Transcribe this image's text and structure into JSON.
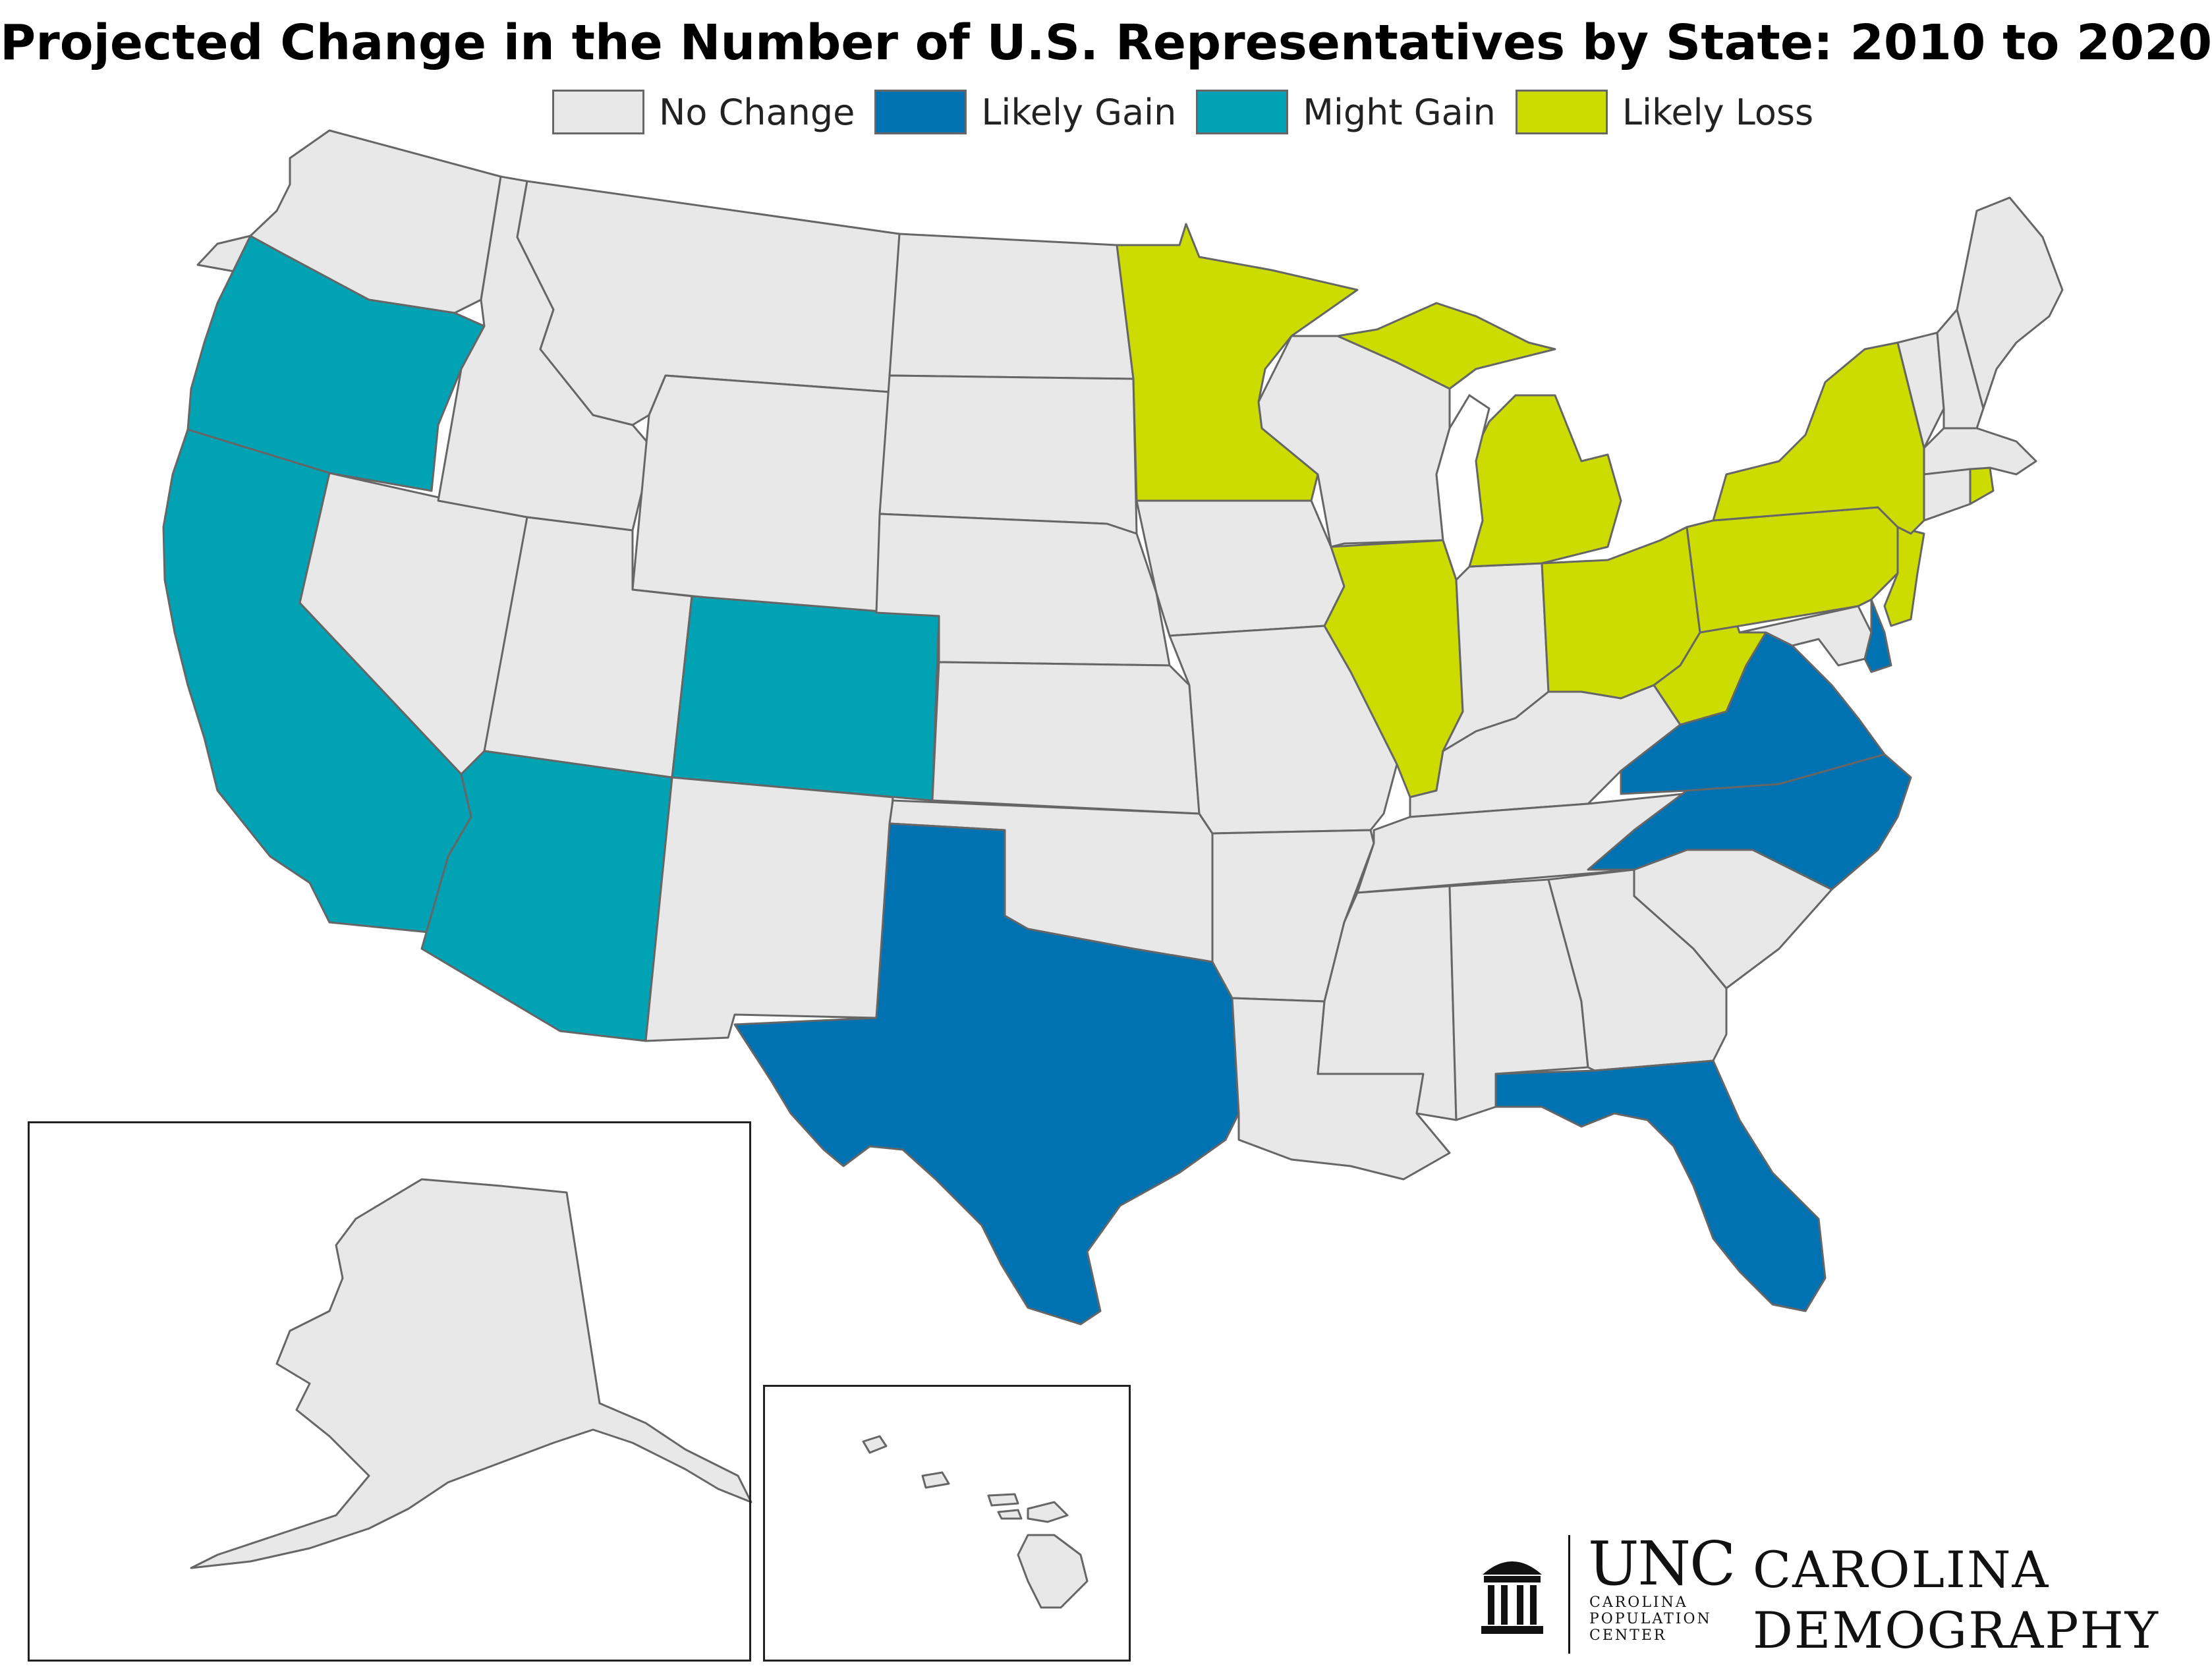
{
  "title": "Projected Change in the Number of U.S. Representatives by State: 2010 to 2020",
  "legend": [
    {
      "label": "No Change",
      "color": "#e8e8e8"
    },
    {
      "label": "Likely Gain",
      "color": "#0072b1"
    },
    {
      "label": "Might Gain",
      "color": "#00a2b4"
    },
    {
      "label": "Likely Loss",
      "color": "#ccdb00"
    }
  ],
  "categories": {
    "likely_gain": [
      "Texas",
      "Florida",
      "North Carolina",
      "Virginia",
      "Delaware"
    ],
    "might_gain": [
      "Oregon",
      "California",
      "Arizona",
      "Colorado"
    ],
    "likely_loss": [
      "Minnesota",
      "Michigan",
      "Illinois",
      "Ohio",
      "West Virginia",
      "Pennsylvania",
      "New York",
      "New Jersey",
      "Rhode Island"
    ],
    "no_change": [
      "Washington",
      "Idaho",
      "Montana",
      "Wyoming",
      "Nevada",
      "Utah",
      "New Mexico",
      "North Dakota",
      "South Dakota",
      "Nebraska",
      "Kansas",
      "Oklahoma",
      "Iowa",
      "Missouri",
      "Arkansas",
      "Louisiana",
      "Wisconsin",
      "Indiana",
      "Kentucky",
      "Tennessee",
      "Mississippi",
      "Alabama",
      "Georgia",
      "South Carolina",
      "Maryland",
      "Connecticut",
      "Massachusetts",
      "Vermont",
      "New Hampshire",
      "Maine",
      "Alaska",
      "Hawaii"
    ]
  },
  "logo": {
    "unc": "UNC",
    "cpc_line1": "CAROLINA",
    "cpc_line2": "POPULATION",
    "cpc_line3": "CENTER",
    "cd_line1": "CAROLINA",
    "cd_line2": "DEMOGRAPHY"
  }
}
